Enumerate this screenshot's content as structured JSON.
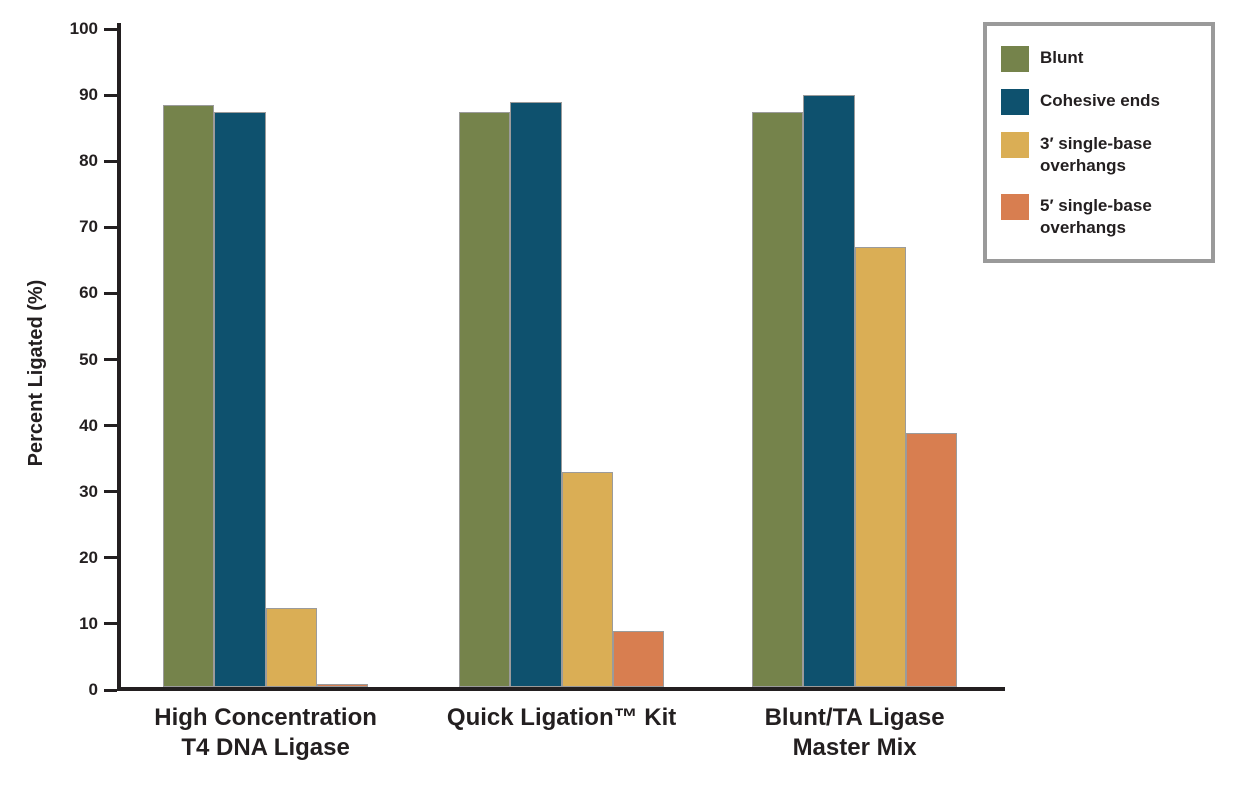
{
  "chart_data": {
    "type": "bar",
    "title": "",
    "ylabel": "Percent Ligated (%)",
    "xlabel": "",
    "ylim": [
      0,
      100
    ],
    "ytick_step": 10,
    "yticks": [
      0,
      10,
      20,
      30,
      40,
      50,
      60,
      70,
      80,
      90,
      100
    ],
    "grid": false,
    "legend_position": "top-right",
    "categories": [
      {
        "lines": [
          "High Concentration",
          "T4 DNA Ligase"
        ]
      },
      {
        "lines": [
          "Quick Ligation™ Kit"
        ]
      },
      {
        "lines": [
          "Blunt/TA Ligase",
          "Master Mix"
        ]
      }
    ],
    "series": [
      {
        "name_lines": [
          "Blunt"
        ],
        "color": "#75834b",
        "values": [
          88,
          87,
          87
        ]
      },
      {
        "name_lines": [
          "Cohesive ends"
        ],
        "color": "#0e516e",
        "values": [
          87,
          88.5,
          89.5
        ]
      },
      {
        "name_lines": [
          "3′ single-base",
          "overhangs"
        ],
        "color": "#daae55",
        "values": [
          12,
          32.5,
          66.5
        ]
      },
      {
        "name_lines": [
          "5′ single-base",
          "overhangs"
        ],
        "color": "#d87e50",
        "values": [
          0.5,
          8.5,
          38.5
        ]
      }
    ],
    "colors": {
      "axis": "#231f20",
      "text": "#231f20",
      "bar_outline": "#9b9b9b",
      "legend_border": "#9a9a9a",
      "background": "#ffffff"
    }
  }
}
